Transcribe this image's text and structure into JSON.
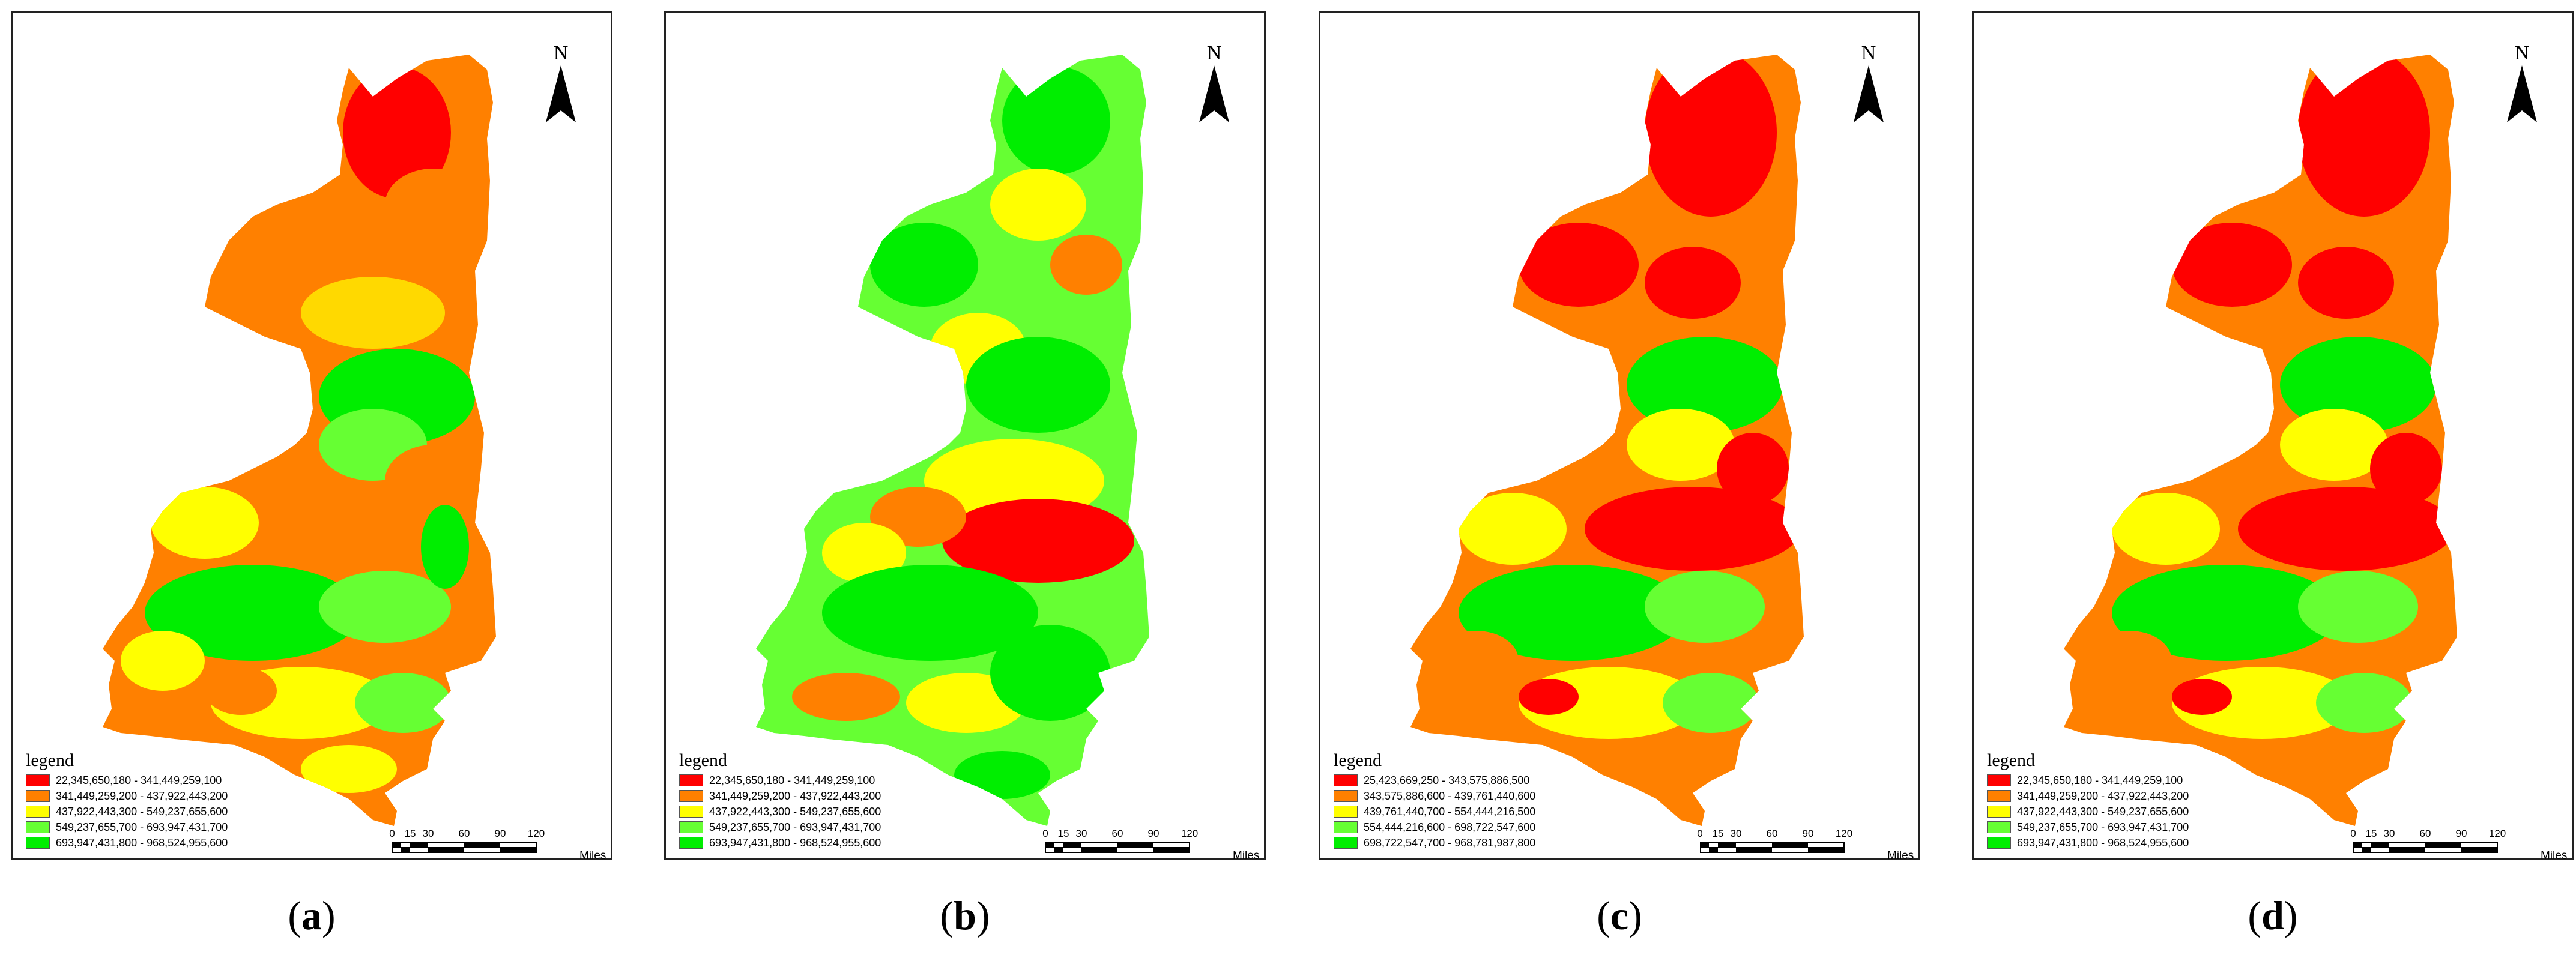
{
  "colors": {
    "red": "#ff0000",
    "orange": "#ff8000",
    "yellow": "#ffff00",
    "light_green": "#66ff33",
    "green": "#00ee00"
  },
  "north_label": "N",
  "scale": {
    "ticks": [
      "0",
      "15",
      "30",
      "60",
      "90",
      "120"
    ],
    "units": "Miles"
  },
  "panels": [
    {
      "caption": "a",
      "legend_title": "legend",
      "legend": [
        "22,345,650,180 - 341,449,259,100",
        "341,449,259,200 - 437,922,443,200",
        "437,922,443,300 - 549,237,655,600",
        "549,237,655,700 - 693,947,431,700",
        "693,947,431,800 - 968,524,955,600"
      ]
    },
    {
      "caption": "b",
      "legend_title": "legend",
      "legend": [
        "22,345,650,180 - 341,449,259,100",
        "341,449,259,200 - 437,922,443,200",
        "437,922,443,300 - 549,237,655,600",
        "549,237,655,700 - 693,947,431,700",
        "693,947,431,800 - 968,524,955,600"
      ]
    },
    {
      "caption": "c",
      "legend_title": "legend",
      "legend": [
        "25,423,669,250 - 343,575,886,500",
        "343,575,886,600 - 439,761,440,600",
        "439,761,440,700 - 554,444,216,500",
        "554,444,216,600 - 698,722,547,600",
        "698,722,547,700 - 968,781,987,800"
      ]
    },
    {
      "caption": "d",
      "legend_title": "legend",
      "legend": [
        "22,345,650,180 - 341,449,259,100",
        "341,449,259,200 - 437,922,443,200",
        "437,922,443,300 - 549,237,655,600",
        "549,237,655,700 - 693,947,431,700",
        "693,947,431,800 - 968,524,955,600"
      ]
    }
  ]
}
